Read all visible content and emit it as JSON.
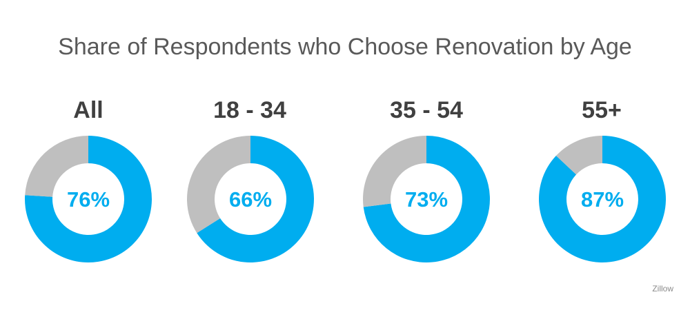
{
  "chart_data": {
    "type": "pie",
    "title": "Share of Respondents who Choose Renovation by Age",
    "categories": [
      "All",
      "18 - 34",
      "35 - 54",
      "55+"
    ],
    "values": [
      76,
      66,
      73,
      87
    ],
    "value_labels": [
      "76%",
      "66%",
      "73%",
      "87%"
    ],
    "colors": {
      "value": "#00adef",
      "remainder": "#bfbfbf"
    }
  },
  "source": "Zillow"
}
